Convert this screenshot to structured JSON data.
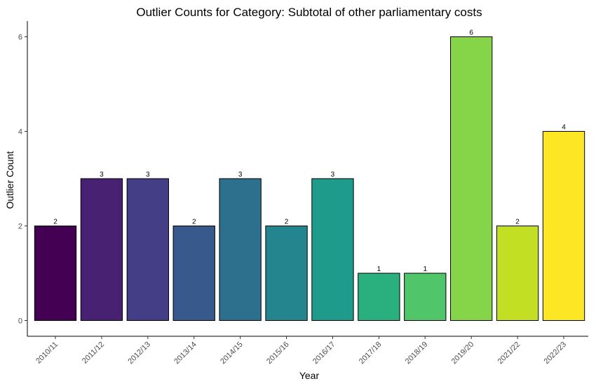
{
  "chart_data": {
    "type": "bar",
    "title": "Outlier Counts for Category: Subtotal of other parliamentary costs",
    "xlabel": "Year",
    "ylabel": "Outlier Count",
    "categories": [
      "2010/11",
      "2011/12",
      "2012/13",
      "2013/14",
      "2014/15",
      "2015/16",
      "2016/17",
      "2017/18",
      "2018/19",
      "2019/20",
      "2021/22",
      "2022/23"
    ],
    "values": [
      2,
      3,
      3,
      2,
      3,
      2,
      3,
      1,
      1,
      6,
      2,
      4
    ],
    "data_labels": [
      "2",
      "3",
      "3",
      "2",
      "3",
      "2",
      "3",
      "1",
      "1",
      "6",
      "2",
      "4"
    ],
    "colors": [
      "#440154",
      "#482173",
      "#433e85",
      "#38598c",
      "#2d708e",
      "#25858e",
      "#1e9b8a",
      "#2ab07f",
      "#51c56a",
      "#86d549",
      "#c2df23",
      "#fde725"
    ],
    "yticks": [
      0,
      2,
      4,
      6
    ],
    "ytick_labels": [
      "0",
      "2",
      "4",
      "6"
    ],
    "ylim": [
      0,
      6
    ],
    "grid": false,
    "legend": "none"
  }
}
